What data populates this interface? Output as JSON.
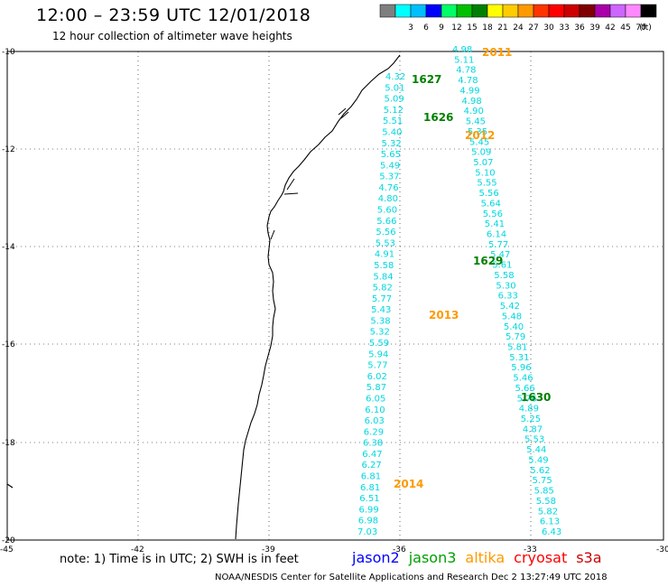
{
  "header": {
    "title": "12:00 – 23:59 UTC 12/01/2018",
    "subtitle": "12 hour collection of altimeter wave heights"
  },
  "color_scale": {
    "unit": "(ft)",
    "bins": [
      {
        "label": "",
        "color": "#7f7f7f"
      },
      {
        "label": "3",
        "color": "#00ffff"
      },
      {
        "label": "6",
        "color": "#00bfff"
      },
      {
        "label": "9",
        "color": "#0000ff"
      },
      {
        "label": "12",
        "color": "#00ff66"
      },
      {
        "label": "15",
        "color": "#00c000"
      },
      {
        "label": "18",
        "color": "#008000"
      },
      {
        "label": "21",
        "color": "#ffff00"
      },
      {
        "label": "24",
        "color": "#ffcc00"
      },
      {
        "label": "27",
        "color": "#ff9900"
      },
      {
        "label": "30",
        "color": "#ff3300"
      },
      {
        "label": "33",
        "color": "#ff0000"
      },
      {
        "label": "36",
        "color": "#cc0000"
      },
      {
        "label": "39",
        "color": "#800000"
      },
      {
        "label": "42",
        "color": "#aa00aa"
      },
      {
        "label": "45",
        "color": "#cc66ff"
      },
      {
        "label": "70",
        "color": "#ff88ff"
      },
      {
        "label": "",
        "color": "#000000"
      }
    ]
  },
  "axes": {
    "lat_ticks": [
      "-10",
      "-12",
      "-14",
      "-16",
      "-18",
      "-20"
    ],
    "lon_ticks": [
      "-45",
      "-42",
      "-39",
      "-36",
      "-33",
      "-30"
    ]
  },
  "tracks": [
    {
      "time": "2011",
      "color": "#ff9900",
      "values": [
        "4.98",
        "5.11",
        "4.78",
        "4.78",
        "4.99",
        "4.98",
        "4.90",
        "5.45",
        "5.35",
        "5.45",
        "5.09",
        "5.07",
        "5.10",
        "5.55",
        "5.56",
        "5.64",
        "5.56",
        "5.41",
        "6.14",
        "5.77",
        "5.47",
        "5.61",
        "5.58",
        "5.30",
        "6.33",
        "5.42",
        "5.48",
        "5.40",
        "5.79",
        "5.81",
        "5.31",
        "5.96",
        "5.46",
        "5.66",
        "5.76",
        "4.89",
        "5.25",
        "4.87",
        "5.53",
        "5.44",
        "5.49",
        "5.62",
        "5.75",
        "5.85",
        "5.58",
        "5.82",
        "6.13",
        "6.43"
      ]
    },
    {
      "time": "1627",
      "color": "#008000",
      "values": [
        "4.32",
        "5.01",
        "5.09",
        "5.12",
        "5.51",
        "5.40",
        "5.32",
        "5.65",
        "5.49",
        "5.37",
        "4.76",
        "4.80",
        "5.60",
        "5.66",
        "5.56",
        "5.53",
        "4.91",
        "5.58",
        "5.84",
        "5.82",
        "5.77",
        "5.43",
        "5.38",
        "5.32",
        "5.59",
        "5.94",
        "5.77",
        "6.02",
        "5.87",
        "6.05",
        "6.10",
        "6.03",
        "6.29",
        "6.38",
        "6.47",
        "6.27",
        "6.81",
        "6.81",
        "6.51",
        "6.99",
        "6.98",
        "7.03"
      ]
    }
  ],
  "track_labels": [
    "2011",
    "1627",
    "1626",
    "2012",
    "1629",
    "2013",
    "1630",
    "2014"
  ],
  "label_colors": {
    "2011": "#ff9900",
    "1627": "#008000",
    "1626": "#008000",
    "2012": "#ff9900",
    "1629": "#008000",
    "2013": "#ff9900",
    "1630": "#008000",
    "2014": "#ff9900"
  },
  "value_color": "#00d8e0",
  "note": "note:  1) Time is in UTC;  2) SWH is in feet",
  "satellites": [
    {
      "name": "jason2",
      "color": "#0000ff"
    },
    {
      "name": "jason3",
      "color": "#00a000"
    },
    {
      "name": "altika",
      "color": "#ff9900"
    },
    {
      "name": "cryosat",
      "color": "#ff0000"
    },
    {
      "name": "s3a",
      "color": "#cc0000"
    }
  ],
  "footer": "NOAA/NESDIS Center for Satellite Applications and Research     Dec  2 13:27:49 UTC 2018"
}
